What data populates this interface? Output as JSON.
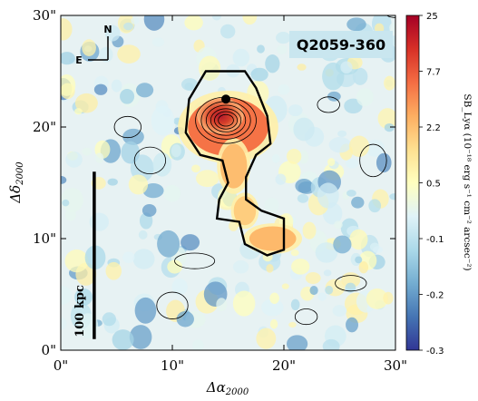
{
  "chart_data": {
    "type": "heatmap",
    "title": "Q2059-360",
    "xlabel": "Δα₂₀₀₀",
    "ylabel": "Δδ₂₀₀₀",
    "xlim": [
      0,
      30
    ],
    "ylim": [
      0,
      30
    ],
    "x_ticks": [
      "0\"",
      "10\"",
      "20\"",
      "30\""
    ],
    "y_ticks": [
      "0\"",
      "10\"",
      "20\"",
      "30\""
    ],
    "colorbar": {
      "label": "SB_Lyα (10⁻¹⁸ erg s⁻¹ cm⁻² arcsec⁻²)",
      "ticks": [
        "25",
        "7.7",
        "2.2",
        "0.5",
        "-0.1",
        "-0.2",
        "-0.3"
      ],
      "colors": [
        "#a50026",
        "#d73027",
        "#f46d43",
        "#fdae61",
        "#fee090",
        "#ffffbf",
        "#e0f3f8",
        "#abd9e9",
        "#74add1",
        "#4575b4",
        "#313695"
      ]
    },
    "compass": {
      "north": "N",
      "east": "E"
    },
    "scale_bar": {
      "label": "100 kpc",
      "x": 3,
      "y_range": [
        1,
        16
      ]
    },
    "source_marker": {
      "x": 14.8,
      "y": 22.5
    },
    "nebula_blobs": [
      {
        "x": 15.0,
        "y": 20.0,
        "rx": 3.6,
        "ry": 2.6,
        "level": 0.6
      },
      {
        "x": 14.3,
        "y": 21.0,
        "rx": 1.3,
        "ry": 1.0,
        "level": 1.0
      },
      {
        "x": 15.5,
        "y": 16.5,
        "rx": 1.2,
        "ry": 2.0,
        "level": 0.3
      },
      {
        "x": 16.5,
        "y": 12.5,
        "rx": 1.0,
        "ry": 1.3,
        "level": 0.22
      },
      {
        "x": 19.0,
        "y": 10.0,
        "rx": 2.1,
        "ry": 1.1,
        "level": 0.32
      }
    ]
  }
}
